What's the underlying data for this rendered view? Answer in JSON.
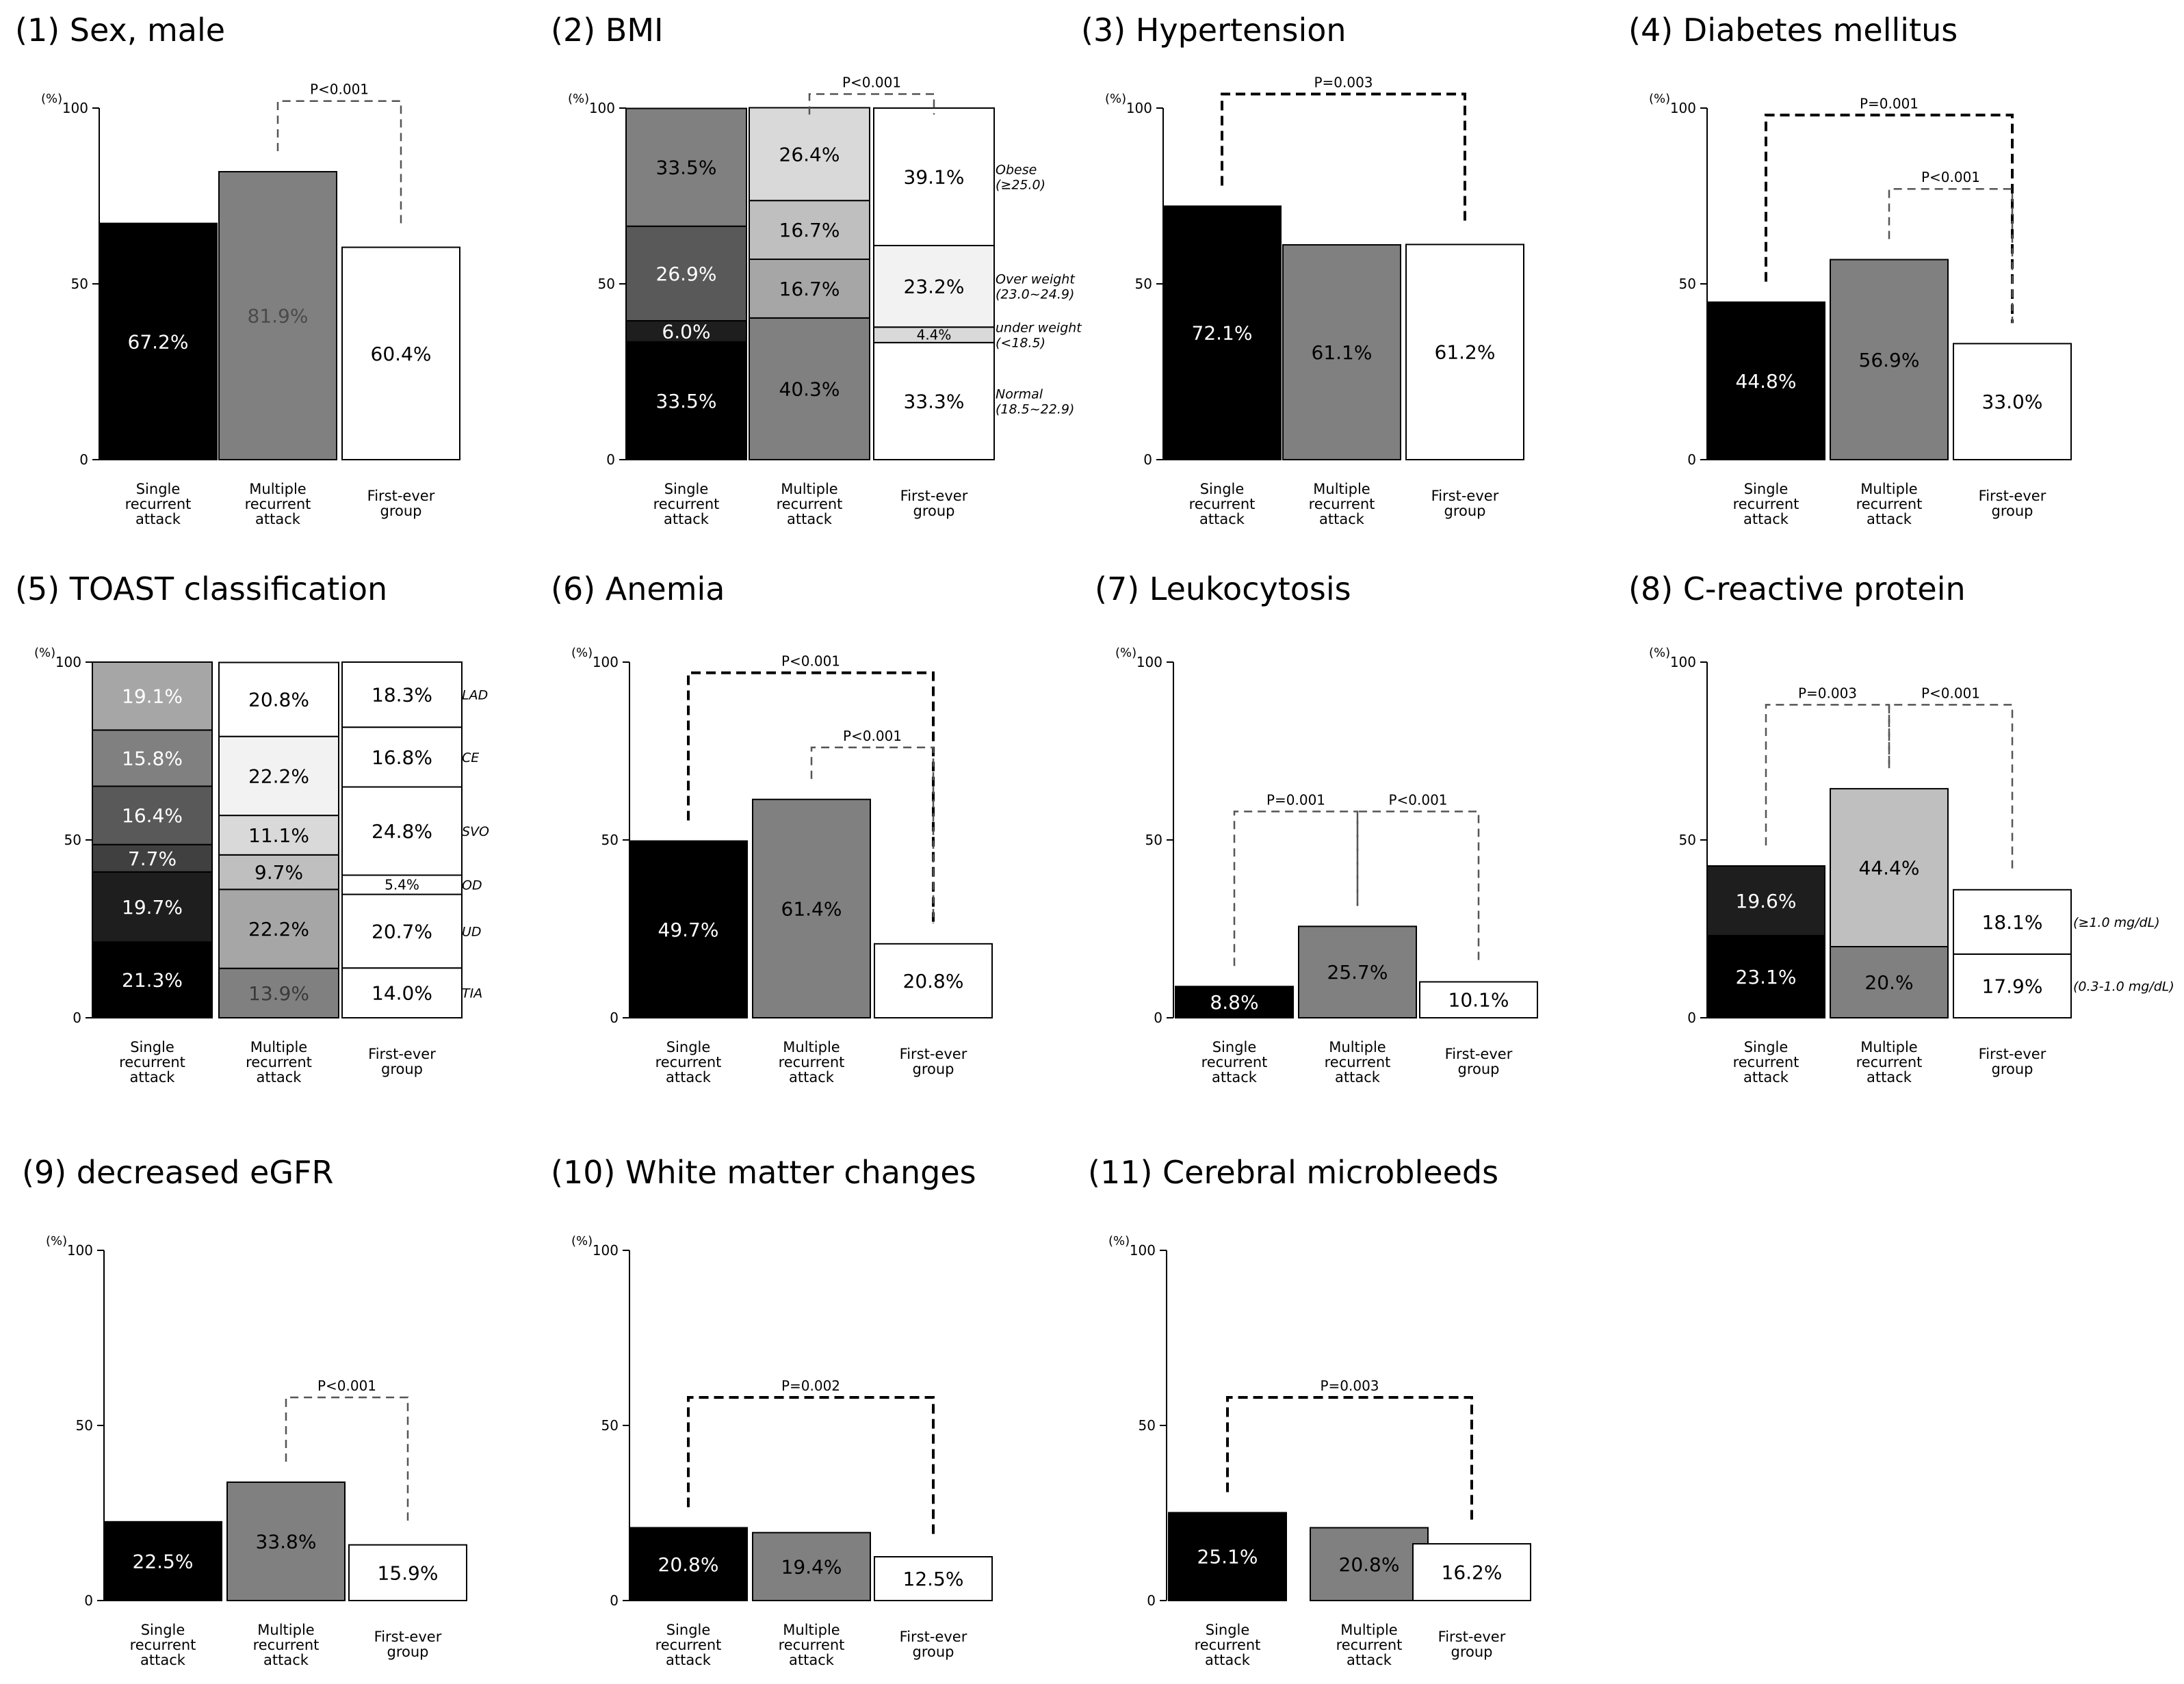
{
  "figure": {
    "y_unit": "(%)",
    "categories": [
      "Single recurrent attack",
      "Multiple recurrent attack",
      "First-ever group"
    ],
    "category_label_lines": [
      [
        "Single",
        "recurrent",
        "attack"
      ],
      [
        "Multiple",
        "recurrent",
        "attack"
      ],
      [
        "First-ever",
        "group"
      ]
    ],
    "colors": {
      "single": "#000000",
      "multiple": "#808080",
      "first": "#ffffff"
    }
  },
  "chart_data": [
    {
      "id": "sex",
      "type": "bar",
      "title": "(1) Sex, male",
      "ylim": [
        0,
        100
      ],
      "yticks": [
        0,
        50,
        100
      ],
      "categories": [
        "Single recurrent attack",
        "Multiple recurrent attack",
        "First-ever group"
      ],
      "values": [
        67.2,
        81.9,
        60.4
      ],
      "value_labels": [
        "67.2%",
        "81.9%",
        "60.4%"
      ],
      "bar_colors": [
        "#000000",
        "#808080",
        "#ffffff"
      ],
      "label_colors": [
        "#ffffff",
        "#4a4a4a",
        "#000000"
      ],
      "annotations": [
        {
          "text": "P<0.001",
          "from": 1,
          "to": 2,
          "level": 102,
          "style": "thin"
        }
      ]
    },
    {
      "id": "bmi",
      "type": "stacked-bar",
      "title": "(2) BMI",
      "ylim": [
        0,
        100
      ],
      "yticks": [
        0,
        50,
        100
      ],
      "categories": [
        "Single recurrent attack",
        "Multiple recurrent attack",
        "First-ever group"
      ],
      "segments": [
        {
          "name": "Normal (18.5~22.9)",
          "name_lines": [
            "Normal",
            "(18.5~22.9)"
          ],
          "values": [
            33.5,
            40.3,
            33.3
          ],
          "labels": [
            "33.5%",
            "40.3%",
            "33.3%"
          ],
          "colors": [
            "#000000",
            "#808080",
            "#ffffff"
          ],
          "label_colors": [
            "#ffffff",
            "#000000",
            "#000000"
          ]
        },
        {
          "name": "under weight (<18.5)",
          "name_lines": [
            "under weight",
            "(<18.5)"
          ],
          "values": [
            6.0,
            16.7,
            4.4
          ],
          "labels": [
            "6.0%",
            "16.7%",
            "4.4%"
          ],
          "colors": [
            "#1e1e1e",
            "#a6a6a6",
            "#d9d9d9"
          ],
          "label_colors": [
            "#ffffff",
            "#000000",
            "#000000"
          ]
        },
        {
          "name": "Over weight (23.0~24.9)",
          "name_lines": [
            "Over weight",
            "(23.0~24.9)"
          ],
          "values": [
            26.9,
            16.7,
            23.2
          ],
          "labels": [
            "26.9%",
            "16.7%",
            "23.2%"
          ],
          "colors": [
            "#595959",
            "#bfbfbf",
            "#f2f2f2"
          ],
          "label_colors": [
            "#ffffff",
            "#000000",
            "#000000"
          ]
        },
        {
          "name": "Obese (≥25.0)",
          "name_lines": [
            "Obese",
            "(≥25.0)"
          ],
          "values": [
            33.5,
            26.4,
            39.1
          ],
          "labels": [
            "33.5%",
            "26.4%",
            "39.1%"
          ],
          "colors": [
            "#808080",
            "#d9d9d9",
            "#ffffff"
          ],
          "label_colors": [
            "#000000",
            "#000000",
            "#000000"
          ]
        }
      ],
      "annotations": [
        {
          "text": "P<0.001",
          "from": 1,
          "to": 2,
          "level": 104,
          "style": "thin"
        }
      ]
    },
    {
      "id": "htn",
      "type": "bar",
      "title": "(3) Hypertension",
      "ylim": [
        0,
        100
      ],
      "yticks": [
        0,
        50,
        100
      ],
      "categories": [
        "Single recurrent attack",
        "Multiple recurrent attack",
        "First-ever group"
      ],
      "values": [
        72.1,
        61.1,
        61.2
      ],
      "value_labels": [
        "72.1%",
        "61.1%",
        "61.2%"
      ],
      "bar_colors": [
        "#000000",
        "#808080",
        "#ffffff"
      ],
      "label_colors": [
        "#ffffff",
        "#000000",
        "#000000"
      ],
      "annotations": [
        {
          "text": "P=0.003",
          "from": 0,
          "to": 2,
          "level": 104,
          "style": "thick"
        }
      ]
    },
    {
      "id": "dm",
      "type": "bar",
      "title": "(4) Diabetes mellitus",
      "ylim": [
        0,
        100
      ],
      "yticks": [
        0,
        50,
        100
      ],
      "categories": [
        "Single recurrent attack",
        "Multiple recurrent attack",
        "First-ever group"
      ],
      "values": [
        44.8,
        56.9,
        33.0
      ],
      "value_labels": [
        "44.8%",
        "56.9%",
        "33.0%"
      ],
      "bar_colors": [
        "#000000",
        "#808080",
        "#ffffff"
      ],
      "label_colors": [
        "#ffffff",
        "#000000",
        "#000000"
      ],
      "annotations": [
        {
          "text": "P=0.001",
          "from": 0,
          "to": 2,
          "level": 98,
          "style": "thick"
        },
        {
          "text": "P<0.001",
          "from": 1,
          "to": 2,
          "level": 77,
          "style": "thin"
        }
      ]
    },
    {
      "id": "toast",
      "type": "stacked-bar",
      "title": "(5) TOAST classification",
      "ylim": [
        0,
        100
      ],
      "yticks": [
        0,
        50,
        100
      ],
      "categories": [
        "Single recurrent attack",
        "Multiple recurrent attack",
        "First-ever group"
      ],
      "segments": [
        {
          "name": "TIA",
          "name_lines": [
            "TIA"
          ],
          "values": [
            21.3,
            13.9,
            14.0
          ],
          "labels": [
            "21.3%",
            "13.9%",
            "14.0%"
          ],
          "colors": [
            "#000000",
            "#808080",
            "#ffffff"
          ],
          "label_colors": [
            "#ffffff",
            "#3a3a3a",
            "#000000"
          ]
        },
        {
          "name": "UD",
          "name_lines": [
            "UD"
          ],
          "values": [
            19.7,
            22.2,
            20.7
          ],
          "labels": [
            "19.7%",
            "22.2%",
            "20.7%"
          ],
          "colors": [
            "#1e1e1e",
            "#a6a6a6",
            "#ffffff"
          ],
          "label_colors": [
            "#ffffff",
            "#000000",
            "#000000"
          ]
        },
        {
          "name": "OD",
          "name_lines": [
            "OD"
          ],
          "values": [
            7.7,
            9.7,
            5.4
          ],
          "labels": [
            "7.7%",
            "9.7%",
            "5.4%"
          ],
          "colors": [
            "#404040",
            "#bfbfbf",
            "#ffffff"
          ],
          "label_colors": [
            "#ffffff",
            "#000000",
            "#000000"
          ]
        },
        {
          "name": "SVO",
          "name_lines": [
            "SVO"
          ],
          "values": [
            16.4,
            11.1,
            24.8
          ],
          "labels": [
            "16.4%",
            "11.1%",
            "24.8%"
          ],
          "colors": [
            "#595959",
            "#d9d9d9",
            "#ffffff"
          ],
          "label_colors": [
            "#ffffff",
            "#000000",
            "#000000"
          ]
        },
        {
          "name": "CE",
          "name_lines": [
            "CE"
          ],
          "values": [
            15.8,
            22.2,
            16.8
          ],
          "labels": [
            "15.8%",
            "22.2%",
            "16.8%"
          ],
          "colors": [
            "#808080",
            "#f2f2f2",
            "#ffffff"
          ],
          "label_colors": [
            "#ffffff",
            "#000000",
            "#000000"
          ]
        },
        {
          "name": "LAD",
          "name_lines": [
            "LAD"
          ],
          "values": [
            19.1,
            20.8,
            18.3
          ],
          "labels": [
            "19.1%",
            "20.8%",
            "18.3%"
          ],
          "colors": [
            "#a6a6a6",
            "#ffffff",
            "#ffffff"
          ],
          "label_colors": [
            "#ffffff",
            "#000000",
            "#000000"
          ]
        }
      ],
      "annotations": []
    },
    {
      "id": "anemia",
      "type": "bar",
      "title": "(6) Anemia",
      "ylim": [
        0,
        100
      ],
      "yticks": [
        0,
        50,
        100
      ],
      "categories": [
        "Single recurrent attack",
        "Multiple recurrent attack",
        "First-ever group"
      ],
      "values": [
        49.7,
        61.4,
        20.8
      ],
      "value_labels": [
        "49.7%",
        "61.4%",
        "20.8%"
      ],
      "bar_colors": [
        "#000000",
        "#808080",
        "#ffffff"
      ],
      "label_colors": [
        "#ffffff",
        "#000000",
        "#000000"
      ],
      "annotations": [
        {
          "text": "P<0.001",
          "from": 0,
          "to": 2,
          "level": 97,
          "style": "thick"
        },
        {
          "text": "P<0.001",
          "from": 1,
          "to": 2,
          "level": 76,
          "style": "thin"
        }
      ]
    },
    {
      "id": "leuko",
      "type": "bar",
      "title": "(7) Leukocytosis",
      "ylim": [
        0,
        100
      ],
      "yticks": [
        0,
        50,
        100
      ],
      "categories": [
        "Single recurrent attack",
        "Multiple recurrent attack",
        "First-ever group"
      ],
      "values": [
        8.8,
        25.7,
        10.1
      ],
      "value_labels": [
        "8.8%",
        "25.7%",
        "10.1%"
      ],
      "bar_colors": [
        "#000000",
        "#808080",
        "#ffffff"
      ],
      "label_colors": [
        "#ffffff",
        "#000000",
        "#000000"
      ],
      "annotations": [
        {
          "text": "P=0.001",
          "from": 0,
          "to": 1,
          "level": 58,
          "style": "thin"
        },
        {
          "text": "P<0.001",
          "from": 1,
          "to": 2,
          "level": 58,
          "style": "thin"
        }
      ]
    },
    {
      "id": "crp",
      "type": "stacked-bar",
      "title": "(8) C-reactive protein",
      "ylim": [
        0,
        100
      ],
      "yticks": [
        0,
        50,
        100
      ],
      "categories": [
        "Single recurrent attack",
        "Multiple recurrent attack",
        "First-ever group"
      ],
      "segments": [
        {
          "name": "(0.3-1.0 mg/dL)",
          "name_lines": [
            "(0.3-1.0 mg/dL)"
          ],
          "values": [
            23.1,
            20.0,
            17.9
          ],
          "labels": [
            "23.1%",
            "20.%",
            "17.9%"
          ],
          "colors": [
            "#000000",
            "#808080",
            "#ffffff"
          ],
          "label_colors": [
            "#ffffff",
            "#000000",
            "#000000"
          ]
        },
        {
          "name": "(≥1.0 mg/dL)",
          "name_lines": [
            "(≥1.0 mg/dL)"
          ],
          "values": [
            19.6,
            44.4,
            18.1
          ],
          "labels": [
            "19.6%",
            "44.4%",
            "18.1%"
          ],
          "colors": [
            "#1e1e1e",
            "#bfbfbf",
            "#ffffff"
          ],
          "label_colors": [
            "#ffffff",
            "#000000",
            "#000000"
          ]
        }
      ],
      "annotations": [
        {
          "text": "P=0.003",
          "from": 0,
          "to": 1,
          "level": 88,
          "style": "thin"
        },
        {
          "text": "P<0.001",
          "from": 1,
          "to": 2,
          "level": 88,
          "style": "thin"
        }
      ]
    },
    {
      "id": "egfr",
      "type": "bar",
      "title": "(9) decreased eGFR",
      "ylim": [
        0,
        100
      ],
      "yticks": [
        0,
        50,
        100
      ],
      "categories": [
        "Single recurrent attack",
        "Multiple recurrent attack",
        "First-ever group"
      ],
      "values": [
        22.5,
        33.8,
        15.9
      ],
      "value_labels": [
        "22.5%",
        "33.8%",
        "15.9%"
      ],
      "bar_colors": [
        "#000000",
        "#808080",
        "#ffffff"
      ],
      "label_colors": [
        "#ffffff",
        "#000000",
        "#000000"
      ],
      "annotations": [
        {
          "text": "P<0.001",
          "from": 1,
          "to": 2,
          "level": 58,
          "style": "thin"
        }
      ]
    },
    {
      "id": "wmc",
      "type": "bar",
      "title": "(10) White matter changes",
      "ylim": [
        0,
        100
      ],
      "yticks": [
        0,
        50,
        100
      ],
      "categories": [
        "Single recurrent attack",
        "Multiple recurrent attack",
        "First-ever group"
      ],
      "values": [
        20.8,
        19.4,
        12.5
      ],
      "value_labels": [
        "20.8%",
        "19.4%",
        "12.5%"
      ],
      "bar_colors": [
        "#000000",
        "#808080",
        "#ffffff"
      ],
      "label_colors": [
        "#ffffff",
        "#000000",
        "#000000"
      ],
      "annotations": [
        {
          "text": "P=0.002",
          "from": 0,
          "to": 2,
          "level": 58,
          "style": "thick"
        }
      ]
    },
    {
      "id": "cmb",
      "type": "bar",
      "title": "(11) Cerebral microbleeds",
      "ylim": [
        0,
        100
      ],
      "yticks": [
        0,
        50,
        100
      ],
      "categories": [
        "Single recurrent attack",
        "Multiple recurrent attack",
        "First-ever group"
      ],
      "values": [
        25.1,
        20.8,
        16.2
      ],
      "value_labels": [
        "25.1%",
        "20.8%",
        "16.2%"
      ],
      "bar_colors": [
        "#000000",
        "#808080",
        "#ffffff"
      ],
      "label_colors": [
        "#ffffff",
        "#000000",
        "#000000"
      ],
      "annotations": [
        {
          "text": "P=0.003",
          "from": 0,
          "to": 2,
          "level": 58,
          "style": "thick"
        }
      ]
    }
  ]
}
